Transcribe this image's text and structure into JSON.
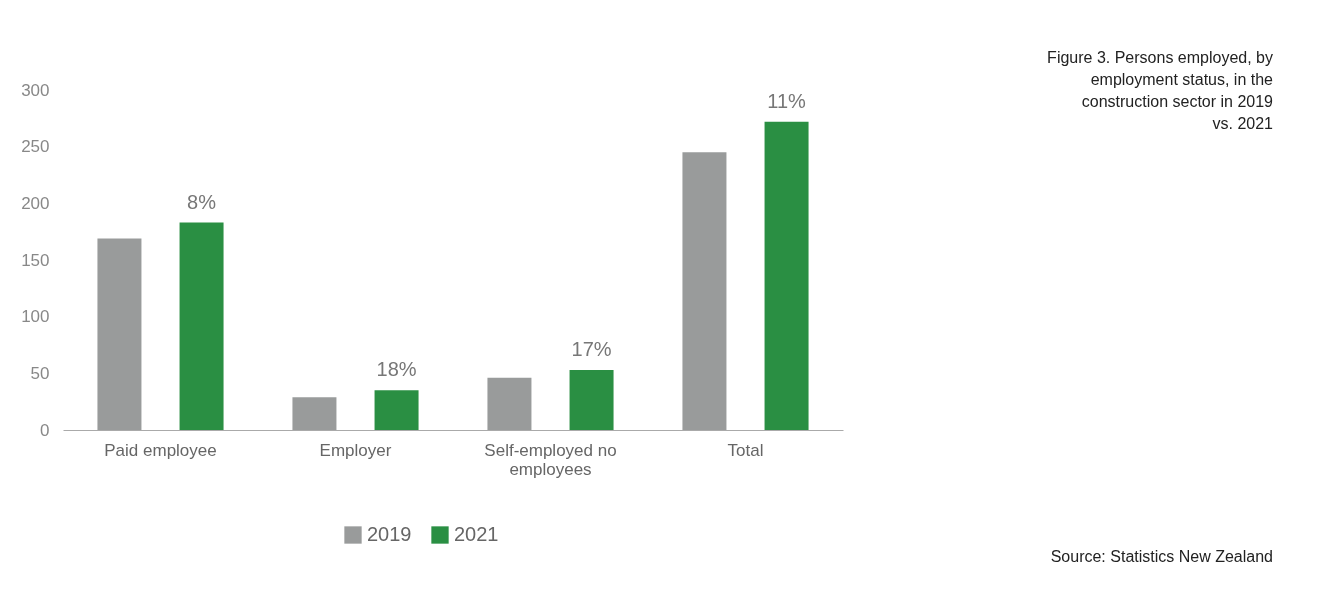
{
  "chart_data": {
    "type": "bar",
    "title": "Figure 3. Persons employed, by employment status, in the construction sector in 2019 vs. 2021",
    "categories": [
      "Paid employee",
      "Employer",
      "Self-employed no employees",
      "Total"
    ],
    "series": [
      {
        "name": "2019",
        "color": "#999b9b",
        "values": [
          169,
          29,
          46,
          245
        ]
      },
      {
        "name": "2021",
        "color": "#2a8f43",
        "values": [
          183,
          35,
          53,
          272
        ]
      }
    ],
    "ylim": [
      0,
      300
    ],
    "yticks": [
      0,
      50,
      100,
      150,
      200,
      250,
      300
    ],
    "grid": false,
    "legend": "bottom",
    "annotations": [
      "8%",
      "18%",
      "17%",
      "11%",
      "Source: Statistics New Zealand"
    ]
  }
}
